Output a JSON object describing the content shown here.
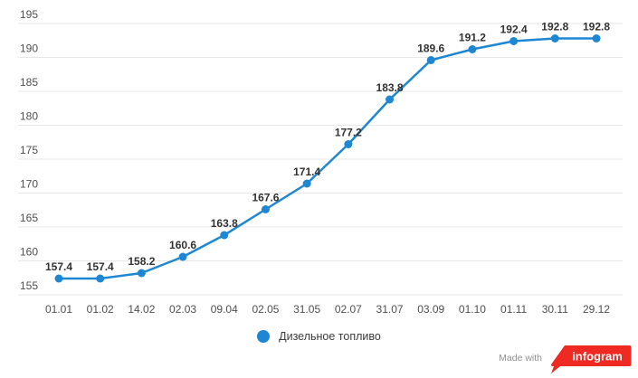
{
  "chart_data": {
    "type": "line",
    "title": "",
    "categories": [
      "01.01",
      "01.02",
      "14.02",
      "02.03",
      "09.04",
      "02.05",
      "31.05",
      "02.07",
      "31.07",
      "03.09",
      "01.10",
      "01.11",
      "30.11",
      "29.12"
    ],
    "series": [
      {
        "name": "Дизельное топливо",
        "values": [
          157.4,
          157.4,
          158.2,
          160.6,
          163.8,
          167.6,
          171.4,
          177.2,
          183.8,
          189.6,
          191.2,
          192.4,
          192.8,
          192.8
        ]
      }
    ],
    "xlabel": "",
    "ylabel": "",
    "ylim": [
      155,
      195
    ],
    "y_tick_step": 5,
    "grid": true,
    "legend_position": "bottom",
    "data_labels_shown": true,
    "colors": {
      "series": "#1d87d3",
      "grid": "#e7e7e7",
      "axis_text": "#4f4f4f",
      "data_label": "#323232"
    }
  },
  "legend": {
    "label": "Дизельное топливо"
  },
  "watermark": {
    "made_with": "Made with",
    "brand": "infogram",
    "brand_color": "#ee2a23",
    "brand_text_color": "#ffffff"
  }
}
